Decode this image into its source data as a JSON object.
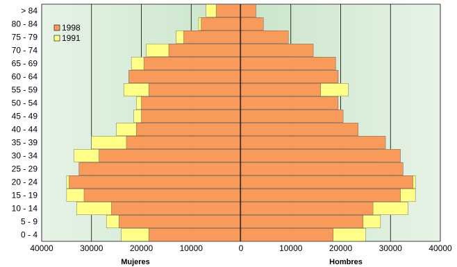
{
  "chart_data": {
    "type": "bar",
    "orientation": "horizontal-population-pyramid",
    "categories": [
      "0 - 4",
      "5 - 9",
      "10 - 14",
      "15 - 19",
      "20 - 24",
      "25 - 29",
      "30 - 34",
      "35 - 39",
      "40 - 44",
      "45 - 49",
      "50 - 54",
      "55 - 59",
      "60 - 64",
      "65 - 69",
      "70 - 74",
      "75 - 79",
      "80 - 84",
      "> 84"
    ],
    "series": [
      {
        "name": "1998",
        "color": "#F79A5A",
        "mujeres": [
          18500,
          24500,
          26000,
          31500,
          34500,
          32500,
          28500,
          23000,
          21000,
          20000,
          20000,
          18500,
          22500,
          19500,
          14500,
          11500,
          8000,
          5000
        ],
        "hombres": [
          18500,
          24500,
          26500,
          32000,
          34500,
          32500,
          32000,
          29000,
          23500,
          20500,
          19500,
          16000,
          19500,
          19000,
          14500,
          9500,
          4500,
          3000
        ]
      },
      {
        "name": "1991",
        "color": "#FFFF88",
        "mujeres": [
          24000,
          27000,
          33000,
          35000,
          35000,
          32500,
          33500,
          30000,
          25000,
          21500,
          21000,
          23500,
          22500,
          22000,
          19000,
          13000,
          8500,
          7000
        ],
        "hombres": [
          25000,
          28000,
          33500,
          35000,
          35000,
          32500,
          27500,
          22000,
          20000,
          19000,
          18000,
          21500,
          19500,
          16000,
          10500,
          7500,
          4000,
          2000
        ]
      }
    ],
    "x_axis": {
      "ticks": [
        "40000",
        "30000",
        "20000",
        "10000",
        "0",
        "10000",
        "20000",
        "30000",
        "40000"
      ],
      "min": -40000,
      "max": 40000
    },
    "labels": {
      "left": "Mujeres",
      "right": "Hombres"
    },
    "legend": [
      "1998",
      "1991"
    ],
    "legend_position": "top-left",
    "grid": true,
    "background_color": "#D6EBD6",
    "grid_color": "#000000"
  }
}
